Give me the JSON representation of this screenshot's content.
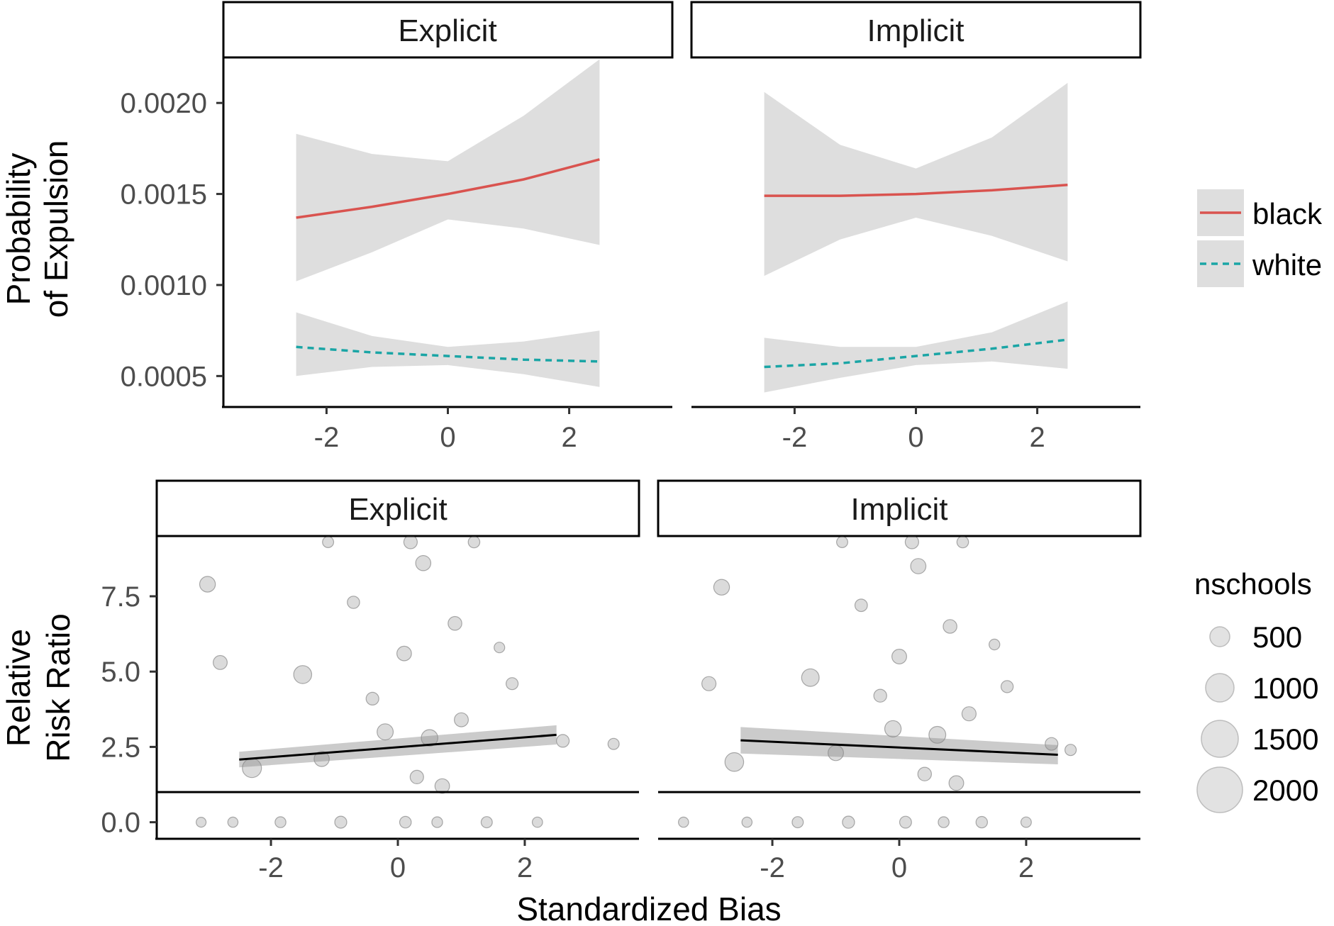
{
  "colors": {
    "black_series": "#d9534f",
    "white_series": "#1aa5a5",
    "ribbon": "#dedede",
    "points": "#5a5a5a",
    "fit": "#000000"
  },
  "chart_data": [
    {
      "type": "line",
      "panel": "top",
      "ylabel_lines": [
        "Probability",
        "of Expulsion"
      ],
      "xlabel": "",
      "facets": [
        "Explicit",
        "Implicit"
      ],
      "xlim": [
        -3.7,
        3.7
      ],
      "ylim": [
        0.00033,
        0.00225
      ],
      "xticks": [
        -2,
        0,
        2
      ],
      "xtick_labels": [
        "-2",
        "0",
        "2"
      ],
      "yticks": [
        0.0005,
        0.001,
        0.0015,
        0.002
      ],
      "ytick_labels": [
        "0.0005",
        "0.0010",
        "0.0015",
        "0.0020"
      ],
      "legend": {
        "position": "right",
        "items": [
          "black",
          "white"
        ]
      },
      "x": [
        -2.5,
        -1.25,
        0,
        1.25,
        2.5
      ],
      "series": [
        {
          "facet": "Explicit",
          "name": "black",
          "style": "solid",
          "y": [
            0.00137,
            0.00143,
            0.0015,
            0.00158,
            0.00169
          ],
          "lower": [
            0.00102,
            0.00118,
            0.00136,
            0.00131,
            0.00122
          ],
          "upper": [
            0.00183,
            0.00172,
            0.00168,
            0.00193,
            0.00224
          ]
        },
        {
          "facet": "Explicit",
          "name": "white",
          "style": "dashed",
          "y": [
            0.00066,
            0.00063,
            0.00061,
            0.00059,
            0.00058
          ],
          "lower": [
            0.0005,
            0.00055,
            0.00056,
            0.00051,
            0.00044
          ],
          "upper": [
            0.00085,
            0.00072,
            0.00066,
            0.00069,
            0.00075
          ]
        },
        {
          "facet": "Implicit",
          "name": "black",
          "style": "solid",
          "y": [
            0.00149,
            0.00149,
            0.0015,
            0.00152,
            0.00155
          ],
          "lower": [
            0.00105,
            0.00125,
            0.00137,
            0.00127,
            0.00113
          ],
          "upper": [
            0.00206,
            0.00177,
            0.00164,
            0.00181,
            0.00211
          ]
        },
        {
          "facet": "Implicit",
          "name": "white",
          "style": "dashed",
          "y": [
            0.00055,
            0.00057,
            0.00061,
            0.00065,
            0.0007
          ],
          "lower": [
            0.00041,
            0.00049,
            0.00056,
            0.00058,
            0.00054
          ],
          "upper": [
            0.00071,
            0.00066,
            0.00066,
            0.00074,
            0.00091
          ]
        }
      ]
    },
    {
      "type": "scatter",
      "panel": "bottom",
      "ylabel_lines": [
        "Relative",
        "Risk Ratio"
      ],
      "xlabel": "Standardized Bias",
      "facets": [
        "Explicit",
        "Implicit"
      ],
      "xlim": [
        -3.8,
        3.8
      ],
      "ylim": [
        -0.55,
        9.5
      ],
      "xticks": [
        -2,
        0,
        2
      ],
      "xtick_labels": [
        "-2",
        "0",
        "2"
      ],
      "yticks": [
        0,
        2.5,
        5,
        7.5
      ],
      "ytick_labels": [
        "0.0",
        "2.5",
        "5.0",
        "7.5"
      ],
      "reference_line": 1,
      "size_legend": {
        "title": "nschools",
        "position": "right",
        "values": [
          500,
          1000,
          1500,
          2000
        ],
        "labels": [
          "500",
          "1000",
          "1500",
          "2000"
        ]
      },
      "fits": [
        {
          "facet": "Explicit",
          "x": [
            -2.5,
            2.5
          ],
          "y": [
            2.08,
            2.9
          ],
          "band_lower": [
            1.82,
            2.58
          ],
          "band_upper": [
            2.34,
            3.22
          ]
        },
        {
          "facet": "Implicit",
          "x": [
            -2.5,
            2.5
          ],
          "y": [
            2.72,
            2.24
          ],
          "band_lower": [
            2.28,
            1.92
          ],
          "band_upper": [
            3.16,
            2.56
          ]
        }
      ],
      "points": {
        "Explicit": [
          {
            "x": 0.12,
            "y": 0.0,
            "n": 350
          },
          {
            "x": -1.85,
            "y": 0.0,
            "n": 280
          },
          {
            "x": 0.62,
            "y": 0.0,
            "n": 260
          },
          {
            "x": -2.6,
            "y": 0.0,
            "n": 200
          },
          {
            "x": 1.4,
            "y": 0.0,
            "n": 310
          },
          {
            "x": -3.1,
            "y": 0.0,
            "n": 180
          },
          {
            "x": 2.2,
            "y": 0.0,
            "n": 220
          },
          {
            "x": -0.9,
            "y": 0.0,
            "n": 400
          },
          {
            "x": 0.3,
            "y": 1.5,
            "n": 600
          },
          {
            "x": -1.2,
            "y": 2.1,
            "n": 900
          },
          {
            "x": 0.5,
            "y": 2.8,
            "n": 1200
          },
          {
            "x": 1.0,
            "y": 3.4,
            "n": 700
          },
          {
            "x": -0.4,
            "y": 4.1,
            "n": 500
          },
          {
            "x": 0.1,
            "y": 5.6,
            "n": 800
          },
          {
            "x": -1.5,
            "y": 4.9,
            "n": 1500
          },
          {
            "x": 1.8,
            "y": 4.6,
            "n": 400
          },
          {
            "x": -2.3,
            "y": 1.8,
            "n": 1800
          },
          {
            "x": 0.9,
            "y": 6.6,
            "n": 650
          },
          {
            "x": -0.7,
            "y": 7.3,
            "n": 450
          },
          {
            "x": 0.4,
            "y": 8.6,
            "n": 900
          },
          {
            "x": -1.1,
            "y": 9.3,
            "n": 300
          },
          {
            "x": 0.2,
            "y": 9.3,
            "n": 600
          },
          {
            "x": 1.2,
            "y": 9.3,
            "n": 350
          },
          {
            "x": -3.0,
            "y": 7.9,
            "n": 1000
          },
          {
            "x": 2.6,
            "y": 2.7,
            "n": 500
          },
          {
            "x": 3.4,
            "y": 2.6,
            "n": 300
          },
          {
            "x": -2.8,
            "y": 5.3,
            "n": 700
          },
          {
            "x": 1.6,
            "y": 5.8,
            "n": 250
          },
          {
            "x": -0.2,
            "y": 3.0,
            "n": 1100
          },
          {
            "x": 0.7,
            "y": 1.2,
            "n": 800
          }
        ],
        "Implicit": [
          {
            "x": 0.1,
            "y": 0.0,
            "n": 380
          },
          {
            "x": -1.6,
            "y": 0.0,
            "n": 300
          },
          {
            "x": 0.7,
            "y": 0.0,
            "n": 270
          },
          {
            "x": -2.4,
            "y": 0.0,
            "n": 210
          },
          {
            "x": 1.3,
            "y": 0.0,
            "n": 330
          },
          {
            "x": -3.4,
            "y": 0.0,
            "n": 200
          },
          {
            "x": 2.0,
            "y": 0.0,
            "n": 230
          },
          {
            "x": -0.8,
            "y": 0.0,
            "n": 420
          },
          {
            "x": 0.4,
            "y": 1.6,
            "n": 620
          },
          {
            "x": -1.0,
            "y": 2.3,
            "n": 950
          },
          {
            "x": 0.6,
            "y": 2.9,
            "n": 1250
          },
          {
            "x": 1.1,
            "y": 3.6,
            "n": 720
          },
          {
            "x": -0.3,
            "y": 4.2,
            "n": 520
          },
          {
            "x": 0.0,
            "y": 5.5,
            "n": 820
          },
          {
            "x": -1.4,
            "y": 4.8,
            "n": 1400
          },
          {
            "x": 1.7,
            "y": 4.5,
            "n": 420
          },
          {
            "x": -2.6,
            "y": 2.0,
            "n": 1700
          },
          {
            "x": 0.8,
            "y": 6.5,
            "n": 660
          },
          {
            "x": -0.6,
            "y": 7.2,
            "n": 460
          },
          {
            "x": 0.3,
            "y": 8.5,
            "n": 920
          },
          {
            "x": -0.9,
            "y": 9.3,
            "n": 310
          },
          {
            "x": 0.2,
            "y": 9.3,
            "n": 610
          },
          {
            "x": 1.0,
            "y": 9.3,
            "n": 360
          },
          {
            "x": -2.8,
            "y": 7.8,
            "n": 1000
          },
          {
            "x": 2.4,
            "y": 2.6,
            "n": 510
          },
          {
            "x": 2.7,
            "y": 2.4,
            "n": 320
          },
          {
            "x": -3.0,
            "y": 4.6,
            "n": 720
          },
          {
            "x": 1.5,
            "y": 5.9,
            "n": 260
          },
          {
            "x": -0.1,
            "y": 3.1,
            "n": 1150
          },
          {
            "x": 0.9,
            "y": 1.3,
            "n": 810
          }
        ]
      }
    }
  ]
}
